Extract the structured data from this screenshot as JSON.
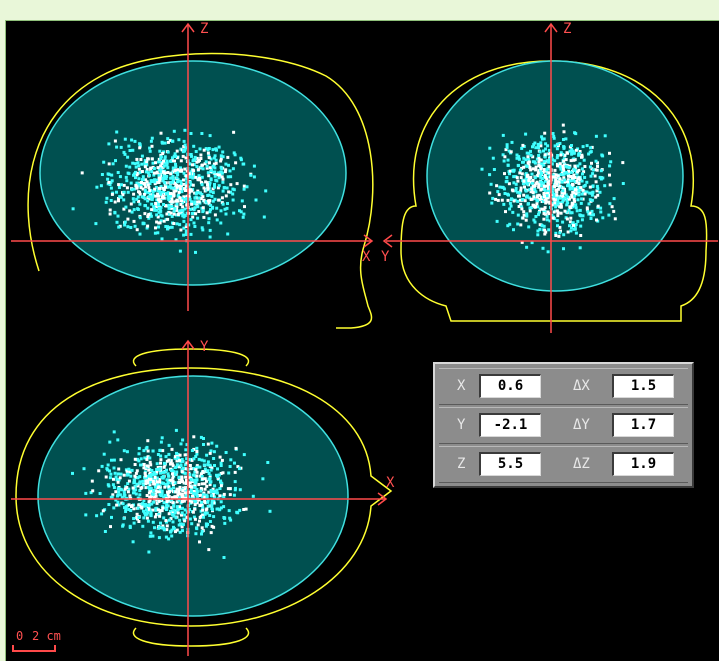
{
  "colors": {
    "background": "#000000",
    "outer_border": "#e9f7d9",
    "brain_fill": "#005050",
    "brain_outline": "#40e0e0",
    "head_outline": "#ffff30",
    "axis": "#ff4a4a",
    "points_cyan": "#40ffff",
    "points_white": "#ffffff",
    "panel": "#8c8c8c"
  },
  "views": {
    "sagittal": {
      "name": "sagittal-view",
      "vertical_axis": "Z",
      "horizontal_axis": "X"
    },
    "coronal": {
      "name": "coronal-view",
      "vertical_axis": "Z",
      "horizontal_axis": "Y"
    },
    "axial": {
      "name": "axial-view",
      "vertical_axis": "Y",
      "horizontal_axis": "X"
    }
  },
  "scale_bar": {
    "zero": "0",
    "value": "2 cm"
  },
  "coordinates": {
    "x": {
      "label": "X",
      "value": "0.6",
      "delta_label": "ΔX",
      "delta_value": "1.5"
    },
    "y": {
      "label": "Y",
      "value": "-2.1",
      "delta_label": "ΔY",
      "delta_value": "1.7"
    },
    "z": {
      "label": "Z",
      "value": "5.5",
      "delta_label": "ΔZ",
      "delta_value": "1.9"
    }
  }
}
